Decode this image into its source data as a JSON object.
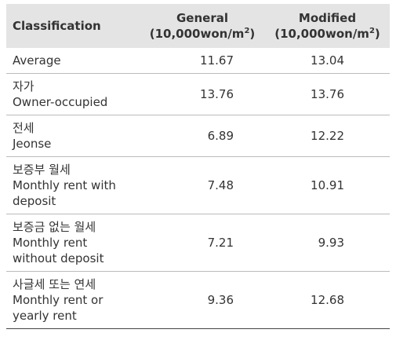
{
  "table": {
    "header": [
      {
        "lines": [
          "Classification"
        ]
      },
      {
        "lines": [
          "General"
        ],
        "unit": "(10,000won/m",
        "sup": "2",
        "close": ")"
      },
      {
        "lines": [
          "Modified"
        ],
        "unit": "(10,000won/m",
        "sup": "2",
        "close": ")"
      }
    ],
    "rows": [
      {
        "label": [
          "Average"
        ],
        "general": 11.67,
        "modified": 13.04
      },
      {
        "label": [
          "자가",
          "Owner-occupied"
        ],
        "general": 13.76,
        "modified": 13.76
      },
      {
        "label": [
          "전세",
          "Jeonse"
        ],
        "general": 6.89,
        "modified": 12.22
      },
      {
        "label": [
          "보증부 월세",
          "Monthly rent with",
          "deposit"
        ],
        "general": 7.48,
        "modified": 10.91
      },
      {
        "label": [
          "보증금 없는 월세",
          "Monthly rent",
          "without deposit"
        ],
        "general": 7.21,
        "modified": 9.93
      },
      {
        "label": [
          "사글세 또는 연세",
          "Monthly rent or",
          "yearly rent"
        ],
        "general": 9.36,
        "modified": 12.68
      }
    ]
  }
}
